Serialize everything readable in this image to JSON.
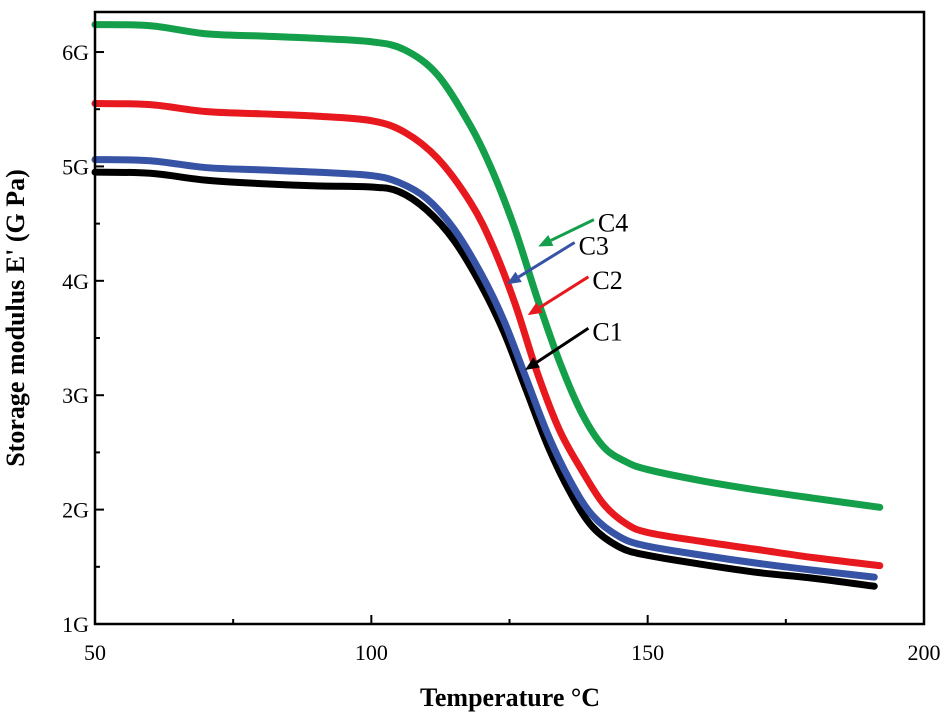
{
  "chart_data": {
    "type": "line",
    "title": "",
    "xlabel": "Temperature °C",
    "ylabel": "Storage modulus E' (G Pa)",
    "xlim": [
      50,
      200
    ],
    "ylim": [
      1,
      6.35
    ],
    "xticks": [
      50,
      100,
      150,
      200
    ],
    "xtick_labels": [
      "50",
      "100",
      "150",
      "200"
    ],
    "yticks": [
      1,
      2,
      3,
      4,
      5,
      6
    ],
    "ytick_labels": [
      "1G",
      "2G",
      "3G",
      "4G",
      "5G",
      "6G"
    ],
    "grid": false,
    "series": [
      {
        "name": "C1",
        "color": "#000000",
        "x": [
          50,
          60,
          70,
          80,
          90,
          100,
          105,
          110,
          115,
          120,
          124,
          128,
          132,
          136,
          140,
          145,
          150,
          160,
          170,
          180,
          191
        ],
        "y": [
          4.95,
          4.94,
          4.88,
          4.85,
          4.83,
          4.82,
          4.78,
          4.62,
          4.35,
          3.95,
          3.55,
          3.05,
          2.55,
          2.15,
          1.85,
          1.67,
          1.6,
          1.52,
          1.45,
          1.4,
          1.33
        ]
      },
      {
        "name": "C2",
        "color": "#e8191e",
        "x": [
          50,
          60,
          70,
          80,
          90,
          100,
          106,
          112,
          118,
          122,
          126,
          130,
          134,
          138,
          142,
          146,
          150,
          160,
          170,
          180,
          192
        ],
        "y": [
          5.55,
          5.54,
          5.48,
          5.46,
          5.44,
          5.4,
          5.3,
          5.07,
          4.68,
          4.3,
          3.8,
          3.2,
          2.7,
          2.35,
          2.05,
          1.88,
          1.8,
          1.72,
          1.65,
          1.58,
          1.51
        ]
      },
      {
        "name": "C3",
        "color": "#3753a5",
        "x": [
          50,
          60,
          70,
          80,
          90,
          100,
          105,
          110,
          115,
          120,
          124,
          128,
          132,
          136,
          140,
          145,
          150,
          160,
          170,
          180,
          191
        ],
        "y": [
          5.06,
          5.05,
          4.99,
          4.97,
          4.95,
          4.92,
          4.86,
          4.72,
          4.45,
          4.05,
          3.65,
          3.15,
          2.65,
          2.25,
          1.95,
          1.76,
          1.68,
          1.6,
          1.53,
          1.47,
          1.41
        ]
      },
      {
        "name": "C4",
        "color": "#149f4b",
        "x": [
          50,
          60,
          70,
          80,
          90,
          100,
          106,
          112,
          118,
          122,
          126,
          130,
          134,
          138,
          142,
          146,
          150,
          160,
          170,
          180,
          192
        ],
        "y": [
          6.24,
          6.23,
          6.16,
          6.14,
          6.12,
          6.09,
          6.02,
          5.8,
          5.35,
          4.95,
          4.45,
          3.85,
          3.3,
          2.85,
          2.55,
          2.42,
          2.35,
          2.25,
          2.17,
          2.1,
          2.02
        ]
      }
    ],
    "annotations": [
      {
        "text": "C4",
        "series": "C4",
        "arrow_to": [
          130.2,
          4.3
        ],
        "label_at": [
          141,
          4.5
        ]
      },
      {
        "text": "C3",
        "series": "C3",
        "arrow_to": [
          124.5,
          3.97
        ],
        "label_at": [
          137.5,
          4.3
        ]
      },
      {
        "text": "C2",
        "series": "C2",
        "arrow_to": [
          128.3,
          3.7
        ],
        "label_at": [
          140,
          4.0
        ]
      },
      {
        "text": "C1",
        "series": "C1",
        "arrow_to": [
          127.8,
          3.22
        ],
        "label_at": [
          140,
          3.55
        ]
      }
    ]
  }
}
